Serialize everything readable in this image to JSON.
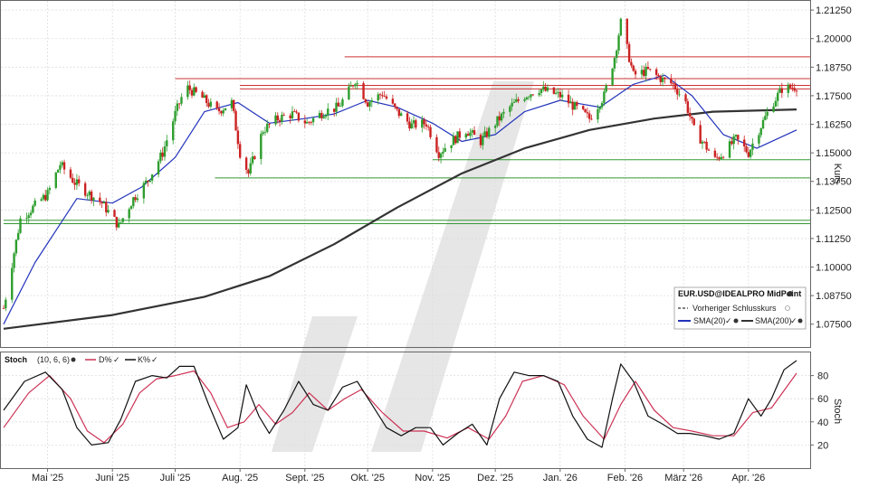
{
  "chart_data": [
    {
      "type": "candlestick",
      "ylabel": "Kurs",
      "ylim": [
        1.065,
        1.2165
      ],
      "y_ticks": [
        "1.07500",
        "1.08750",
        "1.10000",
        "1.11250",
        "1.12500",
        "1.13750",
        "1.15000",
        "1.16250",
        "1.17500",
        "1.18750",
        "1.20000",
        "1.21250"
      ],
      "x_tick_labels": [
        "Mai '25",
        "Juni '25",
        "Juli '25",
        "Aug. '25",
        "Sept. '25",
        "Okt. '25",
        "Nov. '25",
        "Dez. '25",
        "Jan. '26",
        "Feb. '26",
        "März '26",
        "Apr. '26"
      ],
      "x_tick_dates": [
        "2025-05-01",
        "2025-06-01",
        "2025-07-01",
        "2025-08-01",
        "2025-09-01",
        "2025-10-01",
        "2025-11-01",
        "2025-12-01",
        "2026-01-01",
        "2026-02-01",
        "2026-03-01",
        "2026-04-01"
      ],
      "date_range": [
        "2025-04-10",
        "2026-04-24"
      ],
      "close_points": [
        [
          "2025-04-10",
          1.082
        ],
        [
          "2025-04-18",
          1.121
        ],
        [
          "2025-05-01",
          1.132
        ],
        [
          "2025-05-07",
          1.145
        ],
        [
          "2025-05-14",
          1.137
        ],
        [
          "2025-05-21",
          1.132
        ],
        [
          "2025-05-27",
          1.128
        ],
        [
          "2025-06-04",
          1.118
        ],
        [
          "2025-06-11",
          1.13
        ],
        [
          "2025-06-18",
          1.138
        ],
        [
          "2025-06-25",
          1.15
        ],
        [
          "2025-07-01",
          1.167
        ],
        [
          "2025-07-06",
          1.179
        ],
        [
          "2025-07-14",
          1.174
        ],
        [
          "2025-07-21",
          1.168
        ],
        [
          "2025-07-28",
          1.172
        ],
        [
          "2025-08-01",
          1.15
        ],
        [
          "2025-08-05",
          1.141
        ],
        [
          "2025-08-12",
          1.16
        ],
        [
          "2025-08-19",
          1.165
        ],
        [
          "2025-08-26",
          1.167
        ],
        [
          "2025-09-02",
          1.163
        ],
        [
          "2025-09-10",
          1.168
        ],
        [
          "2025-09-17",
          1.17
        ],
        [
          "2025-09-22",
          1.177
        ],
        [
          "2025-09-25",
          1.182
        ],
        [
          "2025-10-01",
          1.172
        ],
        [
          "2025-10-08",
          1.176
        ],
        [
          "2025-10-15",
          1.168
        ],
        [
          "2025-10-22",
          1.162
        ],
        [
          "2025-10-29",
          1.163
        ],
        [
          "2025-11-04",
          1.15
        ],
        [
          "2025-11-10",
          1.155
        ],
        [
          "2025-11-17",
          1.16
        ],
        [
          "2025-11-24",
          1.155
        ],
        [
          "2025-12-01",
          1.163
        ],
        [
          "2025-12-08",
          1.17
        ],
        [
          "2025-12-15",
          1.175
        ],
        [
          "2025-12-22",
          1.178
        ],
        [
          "2026-01-01",
          1.175
        ],
        [
          "2026-01-08",
          1.17
        ],
        [
          "2026-01-15",
          1.165
        ],
        [
          "2026-01-22",
          1.175
        ],
        [
          "2026-01-27",
          1.192
        ],
        [
          "2026-01-30",
          1.207
        ],
        [
          "2026-02-05",
          1.184
        ],
        [
          "2026-02-12",
          1.186
        ],
        [
          "2026-02-19",
          1.182
        ],
        [
          "2026-02-24",
          1.18
        ],
        [
          "2026-03-02",
          1.172
        ],
        [
          "2026-03-06",
          1.16
        ],
        [
          "2026-03-10",
          1.155
        ],
        [
          "2026-03-16",
          1.147
        ],
        [
          "2026-03-20",
          1.15
        ],
        [
          "2026-03-26",
          1.156
        ],
        [
          "2026-04-01",
          1.15
        ],
        [
          "2026-04-06",
          1.16
        ],
        [
          "2026-04-12",
          1.171
        ],
        [
          "2026-04-17",
          1.178
        ],
        [
          "2026-04-24",
          1.179
        ]
      ],
      "sma20_points": [
        [
          "2025-04-10",
          1.075
        ],
        [
          "2025-04-25",
          1.102
        ],
        [
          "2025-05-15",
          1.13
        ],
        [
          "2025-06-01",
          1.128
        ],
        [
          "2025-06-15",
          1.135
        ],
        [
          "2025-07-01",
          1.148
        ],
        [
          "2025-07-15",
          1.168
        ],
        [
          "2025-07-31",
          1.172
        ],
        [
          "2025-08-15",
          1.163
        ],
        [
          "2025-09-01",
          1.165
        ],
        [
          "2025-09-15",
          1.167
        ],
        [
          "2025-10-01",
          1.173
        ],
        [
          "2025-10-15",
          1.17
        ],
        [
          "2025-11-01",
          1.163
        ],
        [
          "2025-11-15",
          1.155
        ],
        [
          "2025-12-01",
          1.158
        ],
        [
          "2025-12-15",
          1.168
        ],
        [
          "2026-01-01",
          1.173
        ],
        [
          "2026-01-20",
          1.17
        ],
        [
          "2026-02-05",
          1.18
        ],
        [
          "2026-02-20",
          1.184
        ],
        [
          "2026-03-05",
          1.175
        ],
        [
          "2026-03-20",
          1.158
        ],
        [
          "2026-04-05",
          1.152
        ],
        [
          "2026-04-24",
          1.16
        ]
      ],
      "sma200_points": [
        [
          "2025-04-10",
          1.073
        ],
        [
          "2025-06-01",
          1.079
        ],
        [
          "2025-07-15",
          1.087
        ],
        [
          "2025-08-15",
          1.096
        ],
        [
          "2025-09-15",
          1.11
        ],
        [
          "2025-10-15",
          1.126
        ],
        [
          "2025-11-15",
          1.141
        ],
        [
          "2025-12-15",
          1.152
        ],
        [
          "2026-01-15",
          1.16
        ],
        [
          "2026-02-15",
          1.165
        ],
        [
          "2026-03-15",
          1.168
        ],
        [
          "2026-04-24",
          1.169
        ]
      ],
      "resistance_lines": [
        {
          "from": "2025-07-01",
          "price": 1.1825,
          "color": "#cc3333"
        },
        {
          "from": "2025-09-20",
          "price": 1.192,
          "color": "#cc3333"
        },
        {
          "from": "2025-08-01",
          "price": 1.1795,
          "color": "#cc3333"
        },
        {
          "from": "2025-08-01",
          "price": 1.178,
          "color": "#cc3333"
        }
      ],
      "support_lines": [
        {
          "from": "2025-11-01",
          "price": 1.147,
          "color": "#339933"
        },
        {
          "from": "2025-07-20",
          "price": 1.139,
          "color": "#339933"
        },
        {
          "from": "2025-04-10",
          "price": 1.1205,
          "color": "#339933"
        },
        {
          "from": "2025-04-10",
          "price": 1.119,
          "color": "#339933"
        }
      ],
      "legend": {
        "title": "EUR.USD@IDEALPRO MidPoint",
        "entries": [
          "Vorheriger Schlusskurs",
          "SMA(20)",
          "SMA(200)"
        ],
        "placement": "bottom-right"
      },
      "colors": {
        "up": "#2e9e2e",
        "down": "#cc2222",
        "sma20": "#2233bb",
        "sma200": "#333333",
        "watermark": "#e3e3e3"
      }
    },
    {
      "type": "line",
      "title": "Stoch",
      "params": "(10, 6, 6)",
      "ylabel": "Stoch",
      "ylim": [
        0,
        100
      ],
      "y_ticks": [
        20,
        40,
        60,
        80
      ],
      "series": [
        {
          "name": "D%",
          "color": "#cc3355"
        },
        {
          "name": "K%",
          "color": "#111111"
        }
      ],
      "k_points": [
        [
          "2025-04-10",
          50
        ],
        [
          "2025-04-20",
          75
        ],
        [
          "2025-04-30",
          83
        ],
        [
          "2025-05-08",
          68
        ],
        [
          "2025-05-15",
          35
        ],
        [
          "2025-05-22",
          20
        ],
        [
          "2025-05-30",
          22
        ],
        [
          "2025-06-05",
          42
        ],
        [
          "2025-06-12",
          75
        ],
        [
          "2025-06-20",
          80
        ],
        [
          "2025-06-27",
          78
        ],
        [
          "2025-07-03",
          88
        ],
        [
          "2025-07-10",
          88
        ],
        [
          "2025-07-17",
          55
        ],
        [
          "2025-07-24",
          25
        ],
        [
          "2025-07-31",
          35
        ],
        [
          "2025-08-04",
          72
        ],
        [
          "2025-08-10",
          45
        ],
        [
          "2025-08-15",
          30
        ],
        [
          "2025-08-22",
          50
        ],
        [
          "2025-08-29",
          75
        ],
        [
          "2025-09-05",
          55
        ],
        [
          "2025-09-12",
          50
        ],
        [
          "2025-09-19",
          70
        ],
        [
          "2025-09-26",
          75
        ],
        [
          "2025-10-03",
          55
        ],
        [
          "2025-10-10",
          35
        ],
        [
          "2025-10-17",
          28
        ],
        [
          "2025-10-24",
          35
        ],
        [
          "2025-10-31",
          35
        ],
        [
          "2025-11-06",
          20
        ],
        [
          "2025-11-13",
          30
        ],
        [
          "2025-11-20",
          38
        ],
        [
          "2025-11-27",
          20
        ],
        [
          "2025-12-03",
          60
        ],
        [
          "2025-12-10",
          83
        ],
        [
          "2025-12-17",
          80
        ],
        [
          "2025-12-24",
          80
        ],
        [
          "2025-12-31",
          75
        ],
        [
          "2026-01-07",
          45
        ],
        [
          "2026-01-14",
          25
        ],
        [
          "2026-01-21",
          18
        ],
        [
          "2026-01-26",
          60
        ],
        [
          "2026-01-30",
          90
        ],
        [
          "2026-02-05",
          75
        ],
        [
          "2026-02-12",
          45
        ],
        [
          "2026-02-19",
          38
        ],
        [
          "2026-02-26",
          30
        ],
        [
          "2026-03-04",
          30
        ],
        [
          "2026-03-11",
          28
        ],
        [
          "2026-03-18",
          25
        ],
        [
          "2026-03-25",
          30
        ],
        [
          "2026-04-01",
          60
        ],
        [
          "2026-04-07",
          45
        ],
        [
          "2026-04-12",
          60
        ],
        [
          "2026-04-18",
          85
        ],
        [
          "2026-04-24",
          93
        ]
      ],
      "d_points": [
        [
          "2025-04-10",
          35
        ],
        [
          "2025-04-22",
          65
        ],
        [
          "2025-05-02",
          80
        ],
        [
          "2025-05-12",
          60
        ],
        [
          "2025-05-20",
          32
        ],
        [
          "2025-05-28",
          22
        ],
        [
          "2025-06-06",
          38
        ],
        [
          "2025-06-14",
          65
        ],
        [
          "2025-06-22",
          77
        ],
        [
          "2025-07-01",
          80
        ],
        [
          "2025-07-10",
          84
        ],
        [
          "2025-07-18",
          65
        ],
        [
          "2025-07-26",
          35
        ],
        [
          "2025-08-03",
          40
        ],
        [
          "2025-08-10",
          55
        ],
        [
          "2025-08-18",
          38
        ],
        [
          "2025-08-26",
          48
        ],
        [
          "2025-09-03",
          65
        ],
        [
          "2025-09-12",
          50
        ],
        [
          "2025-09-20",
          60
        ],
        [
          "2025-09-28",
          68
        ],
        [
          "2025-10-08",
          48
        ],
        [
          "2025-10-18",
          32
        ],
        [
          "2025-10-28",
          32
        ],
        [
          "2025-11-08",
          26
        ],
        [
          "2025-11-18",
          35
        ],
        [
          "2025-11-28",
          25
        ],
        [
          "2025-12-06",
          45
        ],
        [
          "2025-12-14",
          75
        ],
        [
          "2025-12-24",
          80
        ],
        [
          "2026-01-03",
          72
        ],
        [
          "2026-01-12",
          45
        ],
        [
          "2026-01-22",
          25
        ],
        [
          "2026-01-30",
          55
        ],
        [
          "2026-02-06",
          75
        ],
        [
          "2026-02-15",
          50
        ],
        [
          "2026-02-24",
          35
        ],
        [
          "2026-03-05",
          32
        ],
        [
          "2026-03-15",
          28
        ],
        [
          "2026-03-25",
          28
        ],
        [
          "2026-04-03",
          48
        ],
        [
          "2026-04-12",
          52
        ],
        [
          "2026-04-24",
          82
        ]
      ]
    }
  ],
  "stoch_legend": {
    "title": "Stoch",
    "params": "(10, 6, 6)",
    "d_label": "D%",
    "k_label": "K%"
  }
}
